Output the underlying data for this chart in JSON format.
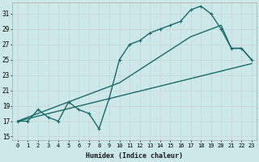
{
  "xlabel": "Humidex (Indice chaleur)",
  "bg_color": "#cce8e8",
  "grid_color": "#c8d8d8",
  "line_color": "#1a6b6b",
  "xlim": [
    -0.5,
    23.5
  ],
  "ylim": [
    14.5,
    32.5
  ],
  "xticks": [
    0,
    1,
    2,
    3,
    4,
    5,
    6,
    7,
    8,
    9,
    10,
    11,
    12,
    13,
    14,
    15,
    16,
    17,
    18,
    19,
    20,
    21,
    22,
    23
  ],
  "yticks": [
    15,
    17,
    19,
    21,
    23,
    25,
    27,
    29,
    31
  ],
  "line1_x": [
    0,
    1,
    2,
    3,
    4,
    5,
    6,
    7,
    8,
    9,
    10,
    11,
    12,
    13,
    14,
    15,
    16,
    17,
    18,
    19,
    20,
    21,
    22,
    23
  ],
  "line1_y": [
    17,
    17,
    18.5,
    17.5,
    17,
    19.5,
    18.5,
    18,
    16,
    20,
    25,
    27,
    27.5,
    28.5,
    29,
    29.5,
    30,
    31.5,
    32,
    31,
    29,
    26.5,
    26.5,
    25
  ],
  "line2_x": [
    0,
    23
  ],
  "line2_y": [
    17,
    24.5
  ],
  "line3_x": [
    0,
    10,
    17,
    19,
    20,
    21,
    22,
    23
  ],
  "line3_y": [
    17,
    22,
    28,
    29,
    29.5,
    26.5,
    26.5,
    25
  ],
  "marker_size": 3,
  "line_width": 1.0
}
